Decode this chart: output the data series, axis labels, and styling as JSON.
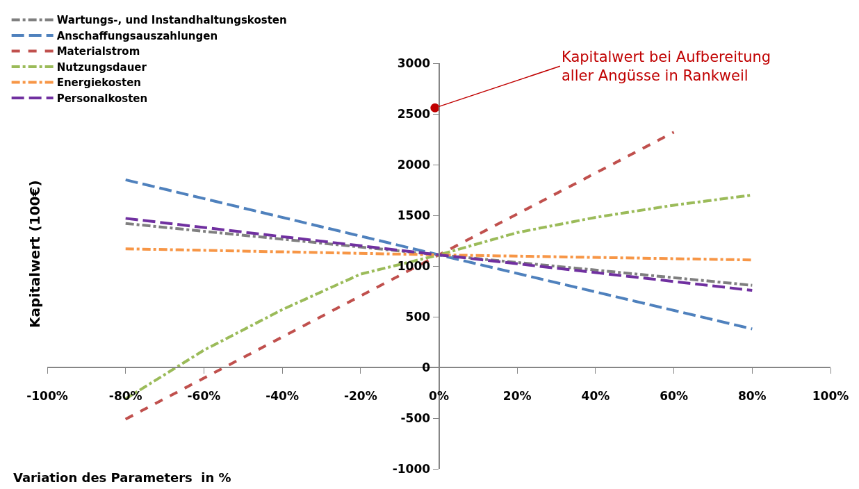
{
  "chart_data": {
    "type": "line",
    "xlabel": "Variation des Parameters  in %",
    "ylabel": "Kapitalwert (100€)",
    "xlim": [
      -100,
      100
    ],
    "ylim": [
      -1000,
      3000
    ],
    "xticks": [
      {
        "value": -100,
        "label": "-100%"
      },
      {
        "value": -80,
        "label": "-80%"
      },
      {
        "value": -60,
        "label": "-60%"
      },
      {
        "value": -40,
        "label": "-40%"
      },
      {
        "value": -20,
        "label": "-20%"
      },
      {
        "value": 0,
        "label": "0%"
      },
      {
        "value": 20,
        "label": "20%"
      },
      {
        "value": 40,
        "label": "40%"
      },
      {
        "value": 60,
        "label": "60%"
      },
      {
        "value": 80,
        "label": "80%"
      },
      {
        "value": 100,
        "label": "100%"
      }
    ],
    "yticks": [
      -1000,
      -500,
      0,
      500,
      1000,
      1500,
      2000,
      2500,
      3000
    ],
    "legend": "top left",
    "marker": "none",
    "series": [
      {
        "name": "Wartungs-, und Instandhaltungskosten",
        "color": "#7f7f7f",
        "line_style": "dashdot",
        "x": [
          -80,
          0,
          80
        ],
        "values": [
          1420,
          1110,
          810
        ]
      },
      {
        "name": "Anschaffungsauszahlungen",
        "color": "#4f81bd",
        "line_style": "longdash",
        "x": [
          -80,
          0,
          80
        ],
        "values": [
          1850,
          1110,
          380
        ]
      },
      {
        "name": "Materialstrom",
        "color": "#c0504d",
        "line_style": "dashed",
        "x": [
          -80,
          0,
          60
        ],
        "values": [
          -510,
          1110,
          2320
        ]
      },
      {
        "name": "Nutzungsdauer",
        "color": "#9bbb59",
        "line_style": "dashdot",
        "x": [
          -80,
          -60,
          -40,
          -20,
          0,
          20,
          40,
          60,
          80
        ],
        "values": [
          -310,
          170,
          570,
          920,
          1110,
          1330,
          1480,
          1600,
          1700
        ]
      },
      {
        "name": "Energiekosten",
        "color": "#f79646",
        "line_style": "dashdot",
        "x": [
          -80,
          0,
          80
        ],
        "values": [
          1170,
          1110,
          1060
        ]
      },
      {
        "name": "Personalkosten",
        "color": "#7030a0",
        "line_style": "longdash",
        "x": [
          -80,
          0,
          80
        ],
        "values": [
          1470,
          1110,
          760
        ]
      },
      {
        "type": "scatter",
        "marker": "circle",
        "color": "#c00000",
        "x": [
          -1
        ],
        "values": [
          2560
        ]
      }
    ],
    "annotations": [
      {
        "text": "Kapitalwert bei Aufbereitung\naller Angüsse in Rankweil",
        "x": -1,
        "y": 2560
      }
    ]
  }
}
